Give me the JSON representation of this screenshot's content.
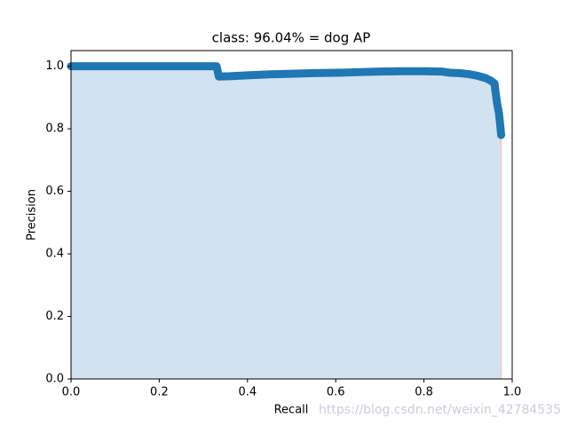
{
  "chart_data": {
    "type": "line",
    "title": "class: 96.04% = dog AP",
    "x_label": "Recall",
    "y_label": "Precision",
    "watermark": "https://blog.csdn.net/weixin_42784535",
    "xlim": [
      0,
      1
    ],
    "ylim": [
      0,
      1.05
    ],
    "xticks": [
      {
        "value": 0,
        "label": "0.0"
      },
      {
        "value": 0.2,
        "label": "0.2"
      },
      {
        "value": 0.4,
        "label": "0.4"
      },
      {
        "value": 0.6,
        "label": "0.6"
      },
      {
        "value": 0.8,
        "label": "0.8"
      },
      {
        "value": 1,
        "label": "1.0"
      }
    ],
    "yticks": [
      {
        "value": 0,
        "label": "0.0"
      },
      {
        "value": 0.2,
        "label": "0.2"
      },
      {
        "value": 0.4,
        "label": "0.4"
      },
      {
        "value": 0.6,
        "label": "0.6"
      },
      {
        "value": 0.8,
        "label": "0.8"
      },
      {
        "value": 1,
        "label": "1.0"
      }
    ],
    "fill_color": "#d1e2f0",
    "series": [
      {
        "color": "#1f77b4",
        "x": [
          0,
          0.05,
          0.1,
          0.15,
          0.2,
          0.25,
          0.3,
          0.33,
          0.335,
          0.36,
          0.4,
          0.45,
          0.5,
          0.55,
          0.6,
          0.65,
          0.7,
          0.75,
          0.8,
          0.84,
          0.86,
          0.88,
          0.9,
          0.92,
          0.94,
          0.95,
          0.96,
          0.962,
          0.966,
          0.97,
          0.973,
          0.975
        ],
        "values": [
          1,
          1,
          1,
          1,
          1,
          1,
          1,
          1,
          0.967,
          0.968,
          0.971,
          0.974,
          0.976,
          0.978,
          0.979,
          0.981,
          0.983,
          0.984,
          0.984,
          0.983,
          0.979,
          0.978,
          0.975,
          0.97,
          0.962,
          0.955,
          0.945,
          0.92,
          0.88,
          0.85,
          0.81,
          0.78
        ]
      }
    ]
  }
}
